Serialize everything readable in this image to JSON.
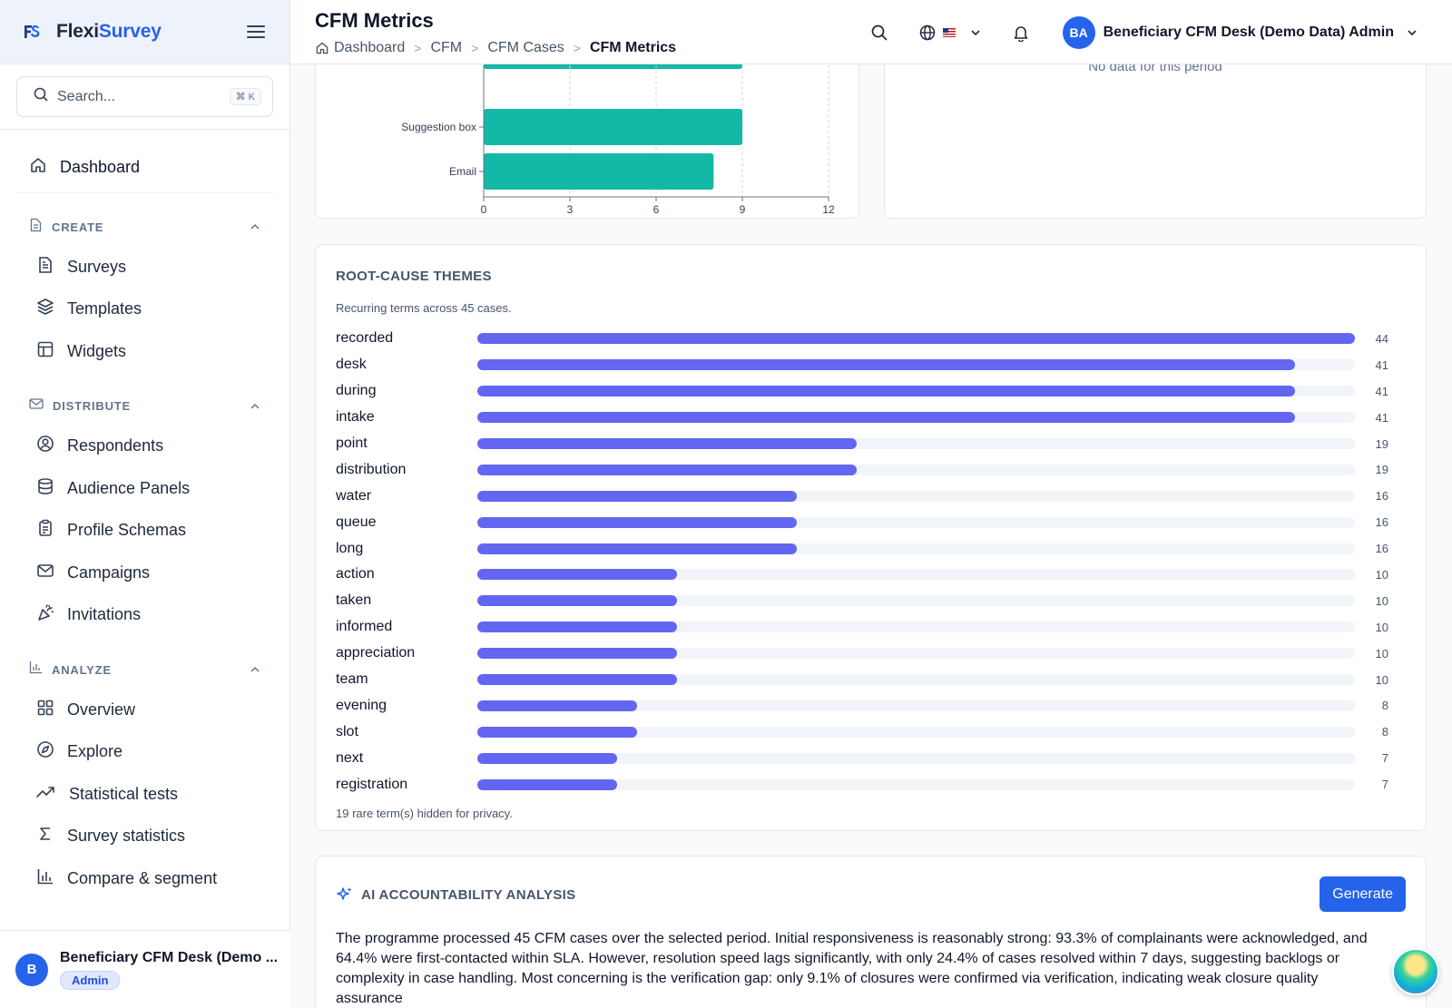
{
  "brand": {
    "name_a": "Flexi",
    "name_b": "Survey"
  },
  "search": {
    "placeholder": "Search...",
    "shortcut": "⌘ K"
  },
  "nav": {
    "dashboard": "Dashboard",
    "sections": [
      {
        "title": "CREATE",
        "icon": "document-icon",
        "items": [
          {
            "label": "Surveys",
            "icon": "file-text-icon"
          },
          {
            "label": "Templates",
            "icon": "layers-icon"
          },
          {
            "label": "Widgets",
            "icon": "layout-icon"
          }
        ]
      },
      {
        "title": "DISTRIBUTE",
        "icon": "mail-icon",
        "items": [
          {
            "label": "Respondents",
            "icon": "user-circle-icon"
          },
          {
            "label": "Audience Panels",
            "icon": "database-icon"
          },
          {
            "label": "Profile Schemas",
            "icon": "clipboard-icon"
          },
          {
            "label": "Campaigns",
            "icon": "envelope-icon"
          },
          {
            "label": "Invitations",
            "icon": "party-popper-icon"
          }
        ]
      },
      {
        "title": "ANALYZE",
        "icon": "bar-chart-icon",
        "items": [
          {
            "label": "Overview",
            "icon": "grid-icon"
          },
          {
            "label": "Explore",
            "icon": "compass-icon"
          },
          {
            "label": "Statistical tests",
            "icon": "trending-up-icon"
          },
          {
            "label": "Survey statistics",
            "icon": "sigma-icon"
          },
          {
            "label": "Compare & segment",
            "icon": "bar-chart-icon"
          }
        ]
      }
    ]
  },
  "footer_user": {
    "initial": "B",
    "name": "Beneficiary CFM Desk (Demo ...",
    "role": "Admin"
  },
  "header": {
    "title": "CFM Metrics",
    "breadcrumbs": [
      "Dashboard",
      "CFM",
      "CFM Cases",
      "CFM Metrics"
    ],
    "user_initials": "BA",
    "user_name": "Beneficiary CFM Desk (Demo Data) Admin"
  },
  "chart_data": {
    "type": "bar",
    "orientation": "horizontal",
    "categories": [
      "Suggestion box",
      "Email"
    ],
    "values": [
      9,
      8
    ],
    "xlim": [
      0,
      12
    ],
    "xticks": [
      0,
      3,
      6,
      9,
      12
    ],
    "color": "#14b8a6",
    "grid": true
  },
  "side_panel": {
    "empty_text": "No data for this period"
  },
  "root_cause": {
    "title": "ROOT-CAUSE THEMES",
    "subtitle": "Recurring terms across 45 cases.",
    "max": 44,
    "terms": [
      {
        "term": "recorded",
        "count": 44
      },
      {
        "term": "desk",
        "count": 41
      },
      {
        "term": "during",
        "count": 41
      },
      {
        "term": "intake",
        "count": 41
      },
      {
        "term": "point",
        "count": 19
      },
      {
        "term": "distribution",
        "count": 19
      },
      {
        "term": "water",
        "count": 16
      },
      {
        "term": "queue",
        "count": 16
      },
      {
        "term": "long",
        "count": 16
      },
      {
        "term": "action",
        "count": 10
      },
      {
        "term": "taken",
        "count": 10
      },
      {
        "term": "informed",
        "count": 10
      },
      {
        "term": "appreciation",
        "count": 10
      },
      {
        "term": "team",
        "count": 10
      },
      {
        "term": "evening",
        "count": 8
      },
      {
        "term": "slot",
        "count": 8
      },
      {
        "term": "next",
        "count": 7
      },
      {
        "term": "registration",
        "count": 7
      }
    ],
    "footnote": "19 rare term(s) hidden for privacy.",
    "bar_color": "#6366f1"
  },
  "ai": {
    "title": "AI ACCOUNTABILITY ANALYSIS",
    "button": "Generate",
    "text": "The programme processed 45 CFM cases over the selected period. Initial responsiveness is reasonably strong: 93.3% of complainants were acknowledged, and 64.4% were first-contacted within SLA. However, resolution speed lags significantly, with only 24.4% of cases resolved within 7 days, suggesting backlogs or complexity in case handling. Most concerning is the verification gap: only 9.1% of closures were confirmed via verification, indicating weak closure quality assurance"
  }
}
